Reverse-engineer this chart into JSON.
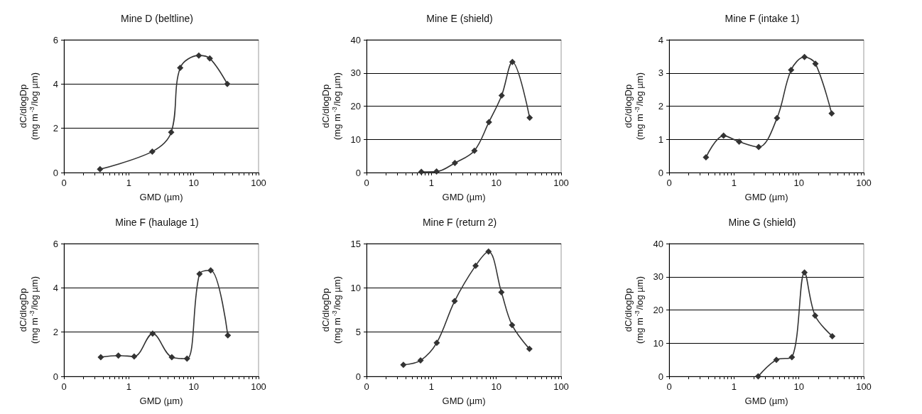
{
  "chart_data": [
    {
      "type": "line",
      "title": "Mine D (beltline)",
      "xlabel": "GMD (µm)",
      "ylabel": "dC/dlogDp\n(mg m$^{-3}$/log µm)",
      "log": "x",
      "grid": "y",
      "marker": "diamond",
      "line_style": "solid",
      "xlim": [
        0.1,
        100
      ],
      "xticks": [
        {
          "value": 0.1,
          "label": "0"
        },
        {
          "value": 0.2,
          "label": null
        },
        {
          "value": 0.3,
          "label": null
        },
        {
          "value": 0.4,
          "label": null
        },
        {
          "value": 0.5,
          "label": null
        },
        {
          "value": 0.6,
          "label": null
        },
        {
          "value": 0.7,
          "label": null
        },
        {
          "value": 0.8,
          "label": null
        },
        {
          "value": 0.9,
          "label": null
        },
        1,
        {
          "value": 2,
          "label": null
        },
        {
          "value": 3,
          "label": null
        },
        {
          "value": 4,
          "label": null
        },
        {
          "value": 5,
          "label": null
        },
        {
          "value": 6,
          "label": null
        },
        {
          "value": 7,
          "label": null
        },
        {
          "value": 8,
          "label": null
        },
        {
          "value": 9,
          "label": null
        },
        10,
        {
          "value": 20,
          "label": null
        },
        {
          "value": 30,
          "label": null
        },
        {
          "value": 40,
          "label": null
        },
        {
          "value": 50,
          "label": null
        },
        {
          "value": 60,
          "label": null
        },
        {
          "value": 70,
          "label": null
        },
        {
          "value": 80,
          "label": null
        },
        {
          "value": 90,
          "label": null
        },
        100
      ],
      "ylim": [
        0,
        6
      ],
      "yticks": [
        0,
        2,
        4,
        6
      ],
      "series": [
        {
          "color": "#333333",
          "x": [
            0.36,
            2.3,
            4.5,
            6.2,
            12,
            17.7,
            33
          ],
          "values": [
            0.15,
            0.95,
            1.82,
            4.73,
            5.29,
            5.16,
            4.0
          ]
        }
      ]
    },
    {
      "type": "line",
      "title": "Mine E (shield)",
      "xlabel": "GMD (µm)",
      "ylabel": "dC/dlogDp\n(mg m$^{-3}$/log µm)",
      "log": "x",
      "grid": "y",
      "marker": "diamond",
      "line_style": "solid",
      "xlim": [
        0.1,
        100
      ],
      "xticks": [
        {
          "value": 0.1,
          "label": "0"
        },
        {
          "value": 0.2,
          "label": null
        },
        {
          "value": 0.3,
          "label": null
        },
        {
          "value": 0.4,
          "label": null
        },
        {
          "value": 0.5,
          "label": null
        },
        {
          "value": 0.6,
          "label": null
        },
        {
          "value": 0.7,
          "label": null
        },
        {
          "value": 0.8,
          "label": null
        },
        {
          "value": 0.9,
          "label": null
        },
        1,
        {
          "value": 2,
          "label": null
        },
        {
          "value": 3,
          "label": null
        },
        {
          "value": 4,
          "label": null
        },
        {
          "value": 5,
          "label": null
        },
        {
          "value": 6,
          "label": null
        },
        {
          "value": 7,
          "label": null
        },
        {
          "value": 8,
          "label": null
        },
        {
          "value": 9,
          "label": null
        },
        10,
        {
          "value": 20,
          "label": null
        },
        {
          "value": 30,
          "label": null
        },
        {
          "value": 40,
          "label": null
        },
        {
          "value": 50,
          "label": null
        },
        {
          "value": 60,
          "label": null
        },
        {
          "value": 70,
          "label": null
        },
        {
          "value": 80,
          "label": null
        },
        {
          "value": 90,
          "label": null
        },
        100
      ],
      "ylim": [
        0,
        40
      ],
      "yticks": [
        0,
        10,
        20,
        30,
        40
      ],
      "series": [
        {
          "color": "#333333",
          "x": [
            0.7,
            1.2,
            2.3,
            4.6,
            7.7,
            12.1,
            17.7,
            32.7
          ],
          "values": [
            0.2,
            0.3,
            2.9,
            6.6,
            15.2,
            23.2,
            33.3,
            16.5
          ]
        }
      ]
    },
    {
      "type": "line",
      "title": "Mine F (intake 1)",
      "xlabel": "GMD (µm)",
      "ylabel": "dC/dlogDp\n(mg m$^{-3}$/log µm)",
      "log": "x",
      "grid": "y",
      "marker": "diamond",
      "line_style": "solid",
      "xlim": [
        0.1,
        100
      ],
      "xticks": [
        {
          "value": 0.1,
          "label": "0"
        },
        {
          "value": 0.2,
          "label": null
        },
        {
          "value": 0.3,
          "label": null
        },
        {
          "value": 0.4,
          "label": null
        },
        {
          "value": 0.5,
          "label": null
        },
        {
          "value": 0.6,
          "label": null
        },
        {
          "value": 0.7,
          "label": null
        },
        {
          "value": 0.8,
          "label": null
        },
        {
          "value": 0.9,
          "label": null
        },
        1,
        {
          "value": 2,
          "label": null
        },
        {
          "value": 3,
          "label": null
        },
        {
          "value": 4,
          "label": null
        },
        {
          "value": 5,
          "label": null
        },
        {
          "value": 6,
          "label": null
        },
        {
          "value": 7,
          "label": null
        },
        {
          "value": 8,
          "label": null
        },
        {
          "value": 9,
          "label": null
        },
        10,
        {
          "value": 20,
          "label": null
        },
        {
          "value": 30,
          "label": null
        },
        {
          "value": 40,
          "label": null
        },
        {
          "value": 50,
          "label": null
        },
        {
          "value": 60,
          "label": null
        },
        {
          "value": 70,
          "label": null
        },
        {
          "value": 80,
          "label": null
        },
        {
          "value": 90,
          "label": null
        },
        100
      ],
      "ylim": [
        0,
        4
      ],
      "yticks": [
        0,
        1,
        2,
        3,
        4
      ],
      "series": [
        {
          "color": "#333333",
          "x": [
            0.37,
            0.69,
            1.2,
            2.4,
            4.6,
            7.6,
            12.2,
            18,
            32
          ],
          "values": [
            0.46,
            1.11,
            0.93,
            0.77,
            1.64,
            3.09,
            3.48,
            3.28,
            1.78
          ]
        }
      ]
    },
    {
      "type": "line",
      "title": "Mine F (haulage 1)",
      "xlabel": "GMD (µm)",
      "ylabel": "dC/dlogDp\n(mg m$^{-3}$/log µm)",
      "log": "x",
      "grid": "y",
      "marker": "diamond",
      "line_style": "solid",
      "xlim": [
        0.1,
        100
      ],
      "xticks": [
        {
          "value": 0.1,
          "label": "0"
        },
        {
          "value": 0.2,
          "label": null
        },
        {
          "value": 0.3,
          "label": null
        },
        {
          "value": 0.4,
          "label": null
        },
        {
          "value": 0.5,
          "label": null
        },
        {
          "value": 0.6,
          "label": null
        },
        {
          "value": 0.7,
          "label": null
        },
        {
          "value": 0.8,
          "label": null
        },
        {
          "value": 0.9,
          "label": null
        },
        1,
        {
          "value": 2,
          "label": null
        },
        {
          "value": 3,
          "label": null
        },
        {
          "value": 4,
          "label": null
        },
        {
          "value": 5,
          "label": null
        },
        {
          "value": 6,
          "label": null
        },
        {
          "value": 7,
          "label": null
        },
        {
          "value": 8,
          "label": null
        },
        {
          "value": 9,
          "label": null
        },
        10,
        {
          "value": 20,
          "label": null
        },
        {
          "value": 30,
          "label": null
        },
        {
          "value": 40,
          "label": null
        },
        {
          "value": 50,
          "label": null
        },
        {
          "value": 60,
          "label": null
        },
        {
          "value": 70,
          "label": null
        },
        {
          "value": 80,
          "label": null
        },
        {
          "value": 90,
          "label": null
        },
        100
      ],
      "ylim": [
        0,
        6
      ],
      "yticks": [
        0,
        2,
        4,
        6
      ],
      "series": [
        {
          "color": "#333333",
          "x": [
            0.37,
            0.69,
            1.21,
            2.33,
            4.6,
            7.9,
            12.3,
            18.3,
            33.6
          ],
          "values": [
            0.87,
            0.94,
            0.9,
            1.93,
            0.87,
            0.8,
            4.63,
            4.79,
            1.85
          ]
        }
      ]
    },
    {
      "type": "line",
      "title": "Mine F (return 2)",
      "xlabel": "GMD (µm)",
      "ylabel": "dC/dlogDp\n(mg m$^{-3}$/log µm)",
      "log": "x",
      "grid": "y",
      "marker": "diamond",
      "line_style": "solid",
      "xlim": [
        0.1,
        100
      ],
      "xticks": [
        {
          "value": 0.1,
          "label": "0"
        },
        {
          "value": 0.2,
          "label": null
        },
        {
          "value": 0.3,
          "label": null
        },
        {
          "value": 0.4,
          "label": null
        },
        {
          "value": 0.5,
          "label": null
        },
        {
          "value": 0.6,
          "label": null
        },
        {
          "value": 0.7,
          "label": null
        },
        {
          "value": 0.8,
          "label": null
        },
        {
          "value": 0.9,
          "label": null
        },
        1,
        {
          "value": 2,
          "label": null
        },
        {
          "value": 3,
          "label": null
        },
        {
          "value": 4,
          "label": null
        },
        {
          "value": 5,
          "label": null
        },
        {
          "value": 6,
          "label": null
        },
        {
          "value": 7,
          "label": null
        },
        {
          "value": 8,
          "label": null
        },
        {
          "value": 9,
          "label": null
        },
        10,
        {
          "value": 20,
          "label": null
        },
        {
          "value": 30,
          "label": null
        },
        {
          "value": 40,
          "label": null
        },
        {
          "value": 50,
          "label": null
        },
        {
          "value": 60,
          "label": null
        },
        {
          "value": 70,
          "label": null
        },
        {
          "value": 80,
          "label": null
        },
        {
          "value": 90,
          "label": null
        },
        100
      ],
      "ylim": [
        0,
        15
      ],
      "yticks": [
        0,
        5,
        10,
        15
      ],
      "series": [
        {
          "color": "#333333",
          "x": [
            0.37,
            0.68,
            1.21,
            2.28,
            4.8,
            7.6,
            12,
            17.5,
            32.4
          ],
          "values": [
            1.3,
            1.8,
            3.8,
            8.5,
            12.5,
            14.1,
            9.5,
            5.8,
            3.1
          ]
        }
      ]
    },
    {
      "type": "line",
      "title": "Mine G (shield)",
      "xlabel": "GMD (µm)",
      "ylabel": "dC/dlogDp\n(mg m$^{-3}$/log µm)",
      "log": "x",
      "grid": "y",
      "marker": "diamond",
      "line_style": "solid",
      "xlim": [
        0.1,
        100
      ],
      "xticks": [
        {
          "value": 0.1,
          "label": "0"
        },
        {
          "value": 0.2,
          "label": null
        },
        {
          "value": 0.3,
          "label": null
        },
        {
          "value": 0.4,
          "label": null
        },
        {
          "value": 0.5,
          "label": null
        },
        {
          "value": 0.6,
          "label": null
        },
        {
          "value": 0.7,
          "label": null
        },
        {
          "value": 0.8,
          "label": null
        },
        {
          "value": 0.9,
          "label": null
        },
        1,
        {
          "value": 2,
          "label": null
        },
        {
          "value": 3,
          "label": null
        },
        {
          "value": 4,
          "label": null
        },
        {
          "value": 5,
          "label": null
        },
        {
          "value": 6,
          "label": null
        },
        {
          "value": 7,
          "label": null
        },
        {
          "value": 8,
          "label": null
        },
        {
          "value": 9,
          "label": null
        },
        10,
        {
          "value": 20,
          "label": null
        },
        {
          "value": 30,
          "label": null
        },
        {
          "value": 40,
          "label": null
        },
        {
          "value": 50,
          "label": null
        },
        {
          "value": 60,
          "label": null
        },
        {
          "value": 70,
          "label": null
        },
        {
          "value": 80,
          "label": null
        },
        {
          "value": 90,
          "label": null
        },
        100
      ],
      "ylim": [
        0,
        40
      ],
      "yticks": [
        0,
        10,
        20,
        30,
        40
      ],
      "series": [
        {
          "color": "#333333",
          "x": [
            2.36,
            4.5,
            7.8,
            12.2,
            17.8,
            32.7
          ],
          "values": [
            0,
            5.0,
            5.8,
            31.3,
            18.3,
            12.1
          ]
        }
      ]
    }
  ]
}
